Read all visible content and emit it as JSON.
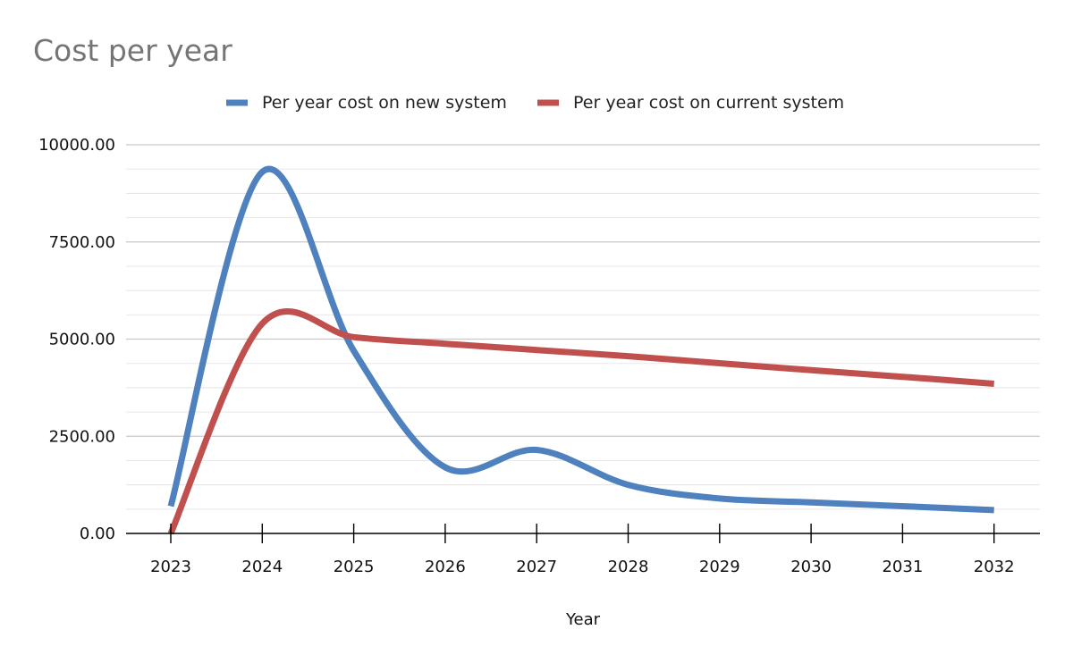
{
  "chart_data": {
    "type": "line",
    "title": "Cost per year",
    "xlabel": "Year",
    "ylabel": "",
    "categories": [
      "2023",
      "2024",
      "2025",
      "2026",
      "2027",
      "2028",
      "2029",
      "2030",
      "2031",
      "2032"
    ],
    "y_ticks": [
      "0.00",
      "2500.00",
      "5000.00",
      "7500.00",
      "10000.00"
    ],
    "ylim": [
      0,
      10000
    ],
    "smooth": true,
    "grid": "horizontal, major and minor",
    "legend_position": "top-center",
    "series": [
      {
        "name": "Per year cost on new system",
        "color": "#4E81BD",
        "values": [
          700,
          9300,
          4700,
          1700,
          2150,
          1250,
          900,
          800,
          700,
          600
        ]
      },
      {
        "name": "Per year cost on current system",
        "color": "#C0504D",
        "values": [
          0,
          5400,
          5050,
          4880,
          4720,
          4560,
          4380,
          4200,
          4030,
          3850
        ]
      }
    ]
  }
}
